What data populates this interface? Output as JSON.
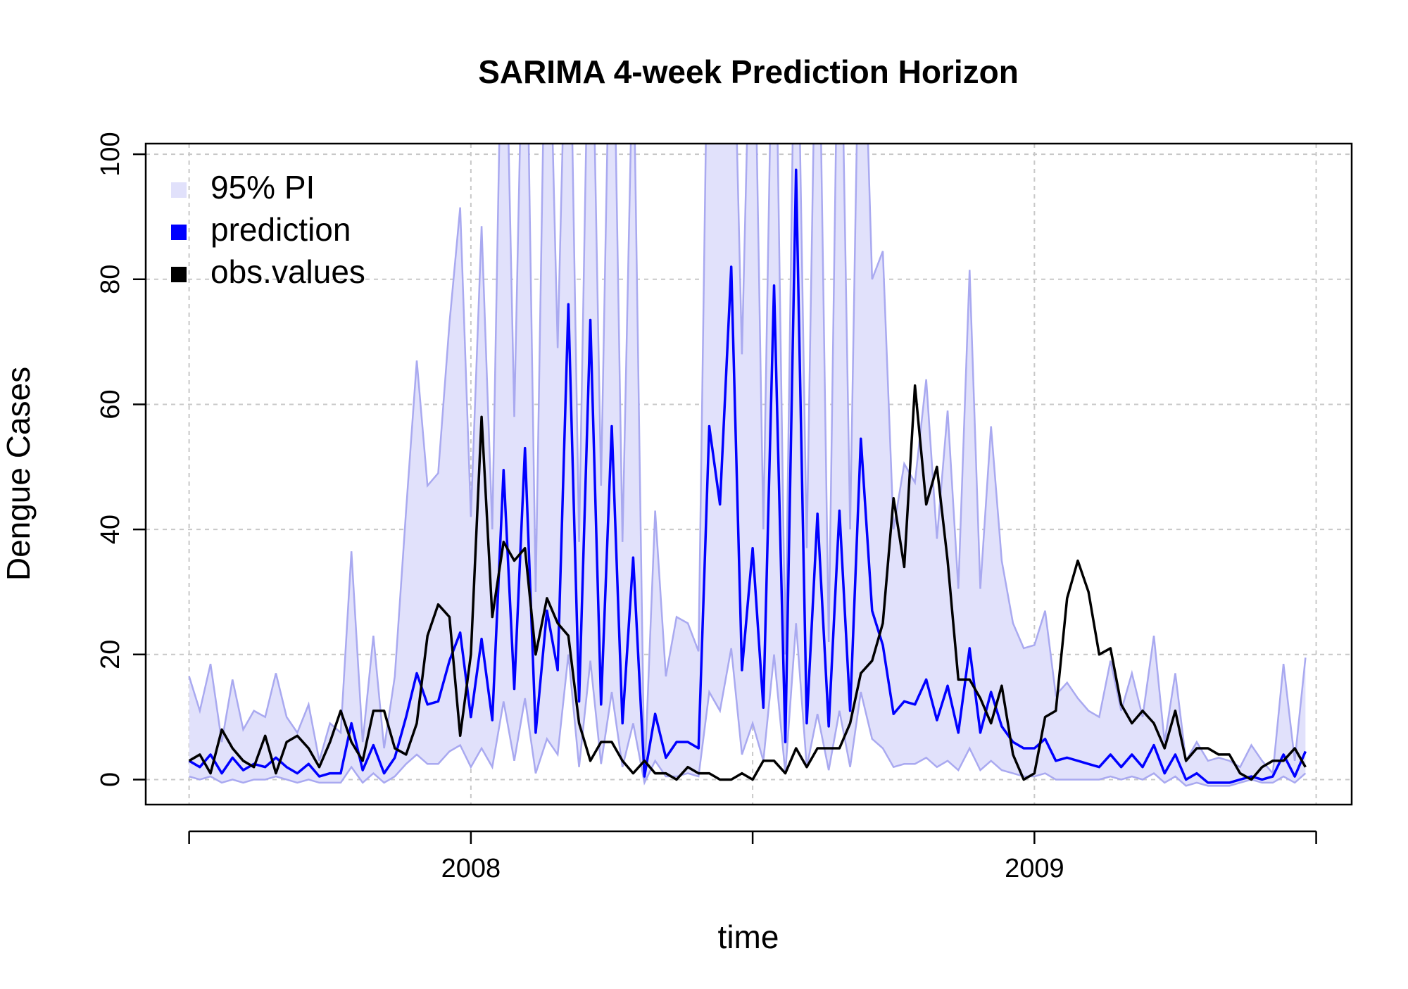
{
  "chart_data": {
    "type": "line",
    "title": "SARIMA 4-week Prediction Horizon",
    "x_label": "time",
    "y_label": "Dengue Cases",
    "xlim": [
      2007.423,
      2009.563
    ],
    "ylim": [
      -4,
      101.7
    ],
    "xticks": [
      {
        "value": 2007.5,
        "label": null
      },
      2008,
      {
        "value": 2008.5,
        "label": null
      },
      2009,
      {
        "value": 2009.5,
        "label": null
      }
    ],
    "yticks": [
      0,
      20,
      40,
      60,
      80,
      100
    ],
    "grid": true,
    "legend": "top-left",
    "x": [
      2007.5,
      2007.519,
      2007.538,
      2007.558,
      2007.577,
      2007.596,
      2007.615,
      2007.635,
      2007.654,
      2007.673,
      2007.692,
      2007.712,
      2007.731,
      2007.75,
      2007.769,
      2007.788,
      2007.808,
      2007.827,
      2007.846,
      2007.865,
      2007.885,
      2007.904,
      2007.923,
      2007.942,
      2007.962,
      2007.981,
      2008,
      2008.019,
      2008.038,
      2008.058,
      2008.077,
      2008.096,
      2008.115,
      2008.135,
      2008.154,
      2008.173,
      2008.192,
      2008.212,
      2008.231,
      2008.25,
      2008.269,
      2008.288,
      2008.308,
      2008.327,
      2008.346,
      2008.365,
      2008.385,
      2008.404,
      2008.423,
      2008.442,
      2008.462,
      2008.481,
      2008.5,
      2008.519,
      2008.538,
      2008.558,
      2008.577,
      2008.596,
      2008.615,
      2008.635,
      2008.654,
      2008.673,
      2008.692,
      2008.712,
      2008.731,
      2008.75,
      2008.769,
      2008.788,
      2008.808,
      2008.827,
      2008.846,
      2008.865,
      2008.885,
      2008.904,
      2008.923,
      2008.942,
      2008.962,
      2008.981,
      2009,
      2009.019,
      2009.038,
      2009.058,
      2009.077,
      2009.096,
      2009.115,
      2009.135,
      2009.154,
      2009.173,
      2009.192,
      2009.212,
      2009.231,
      2009.25,
      2009.269,
      2009.288,
      2009.308,
      2009.327,
      2009.346,
      2009.365,
      2009.385,
      2009.404,
      2009.423,
      2009.442,
      2009.462,
      2009.481
    ],
    "series": [
      {
        "name": "95% PI",
        "kind": "band",
        "color": "#e1e1fb",
        "line_color": "#a9a9f0",
        "upper": [
          16.5,
          11,
          18.5,
          6,
          16,
          8,
          11,
          10,
          17,
          10,
          7.5,
          12,
          3,
          9,
          7.5,
          36.5,
          6,
          23,
          5,
          16.5,
          43,
          67,
          47,
          49,
          73,
          91.5,
          42,
          88.5,
          40,
          140,
          58,
          140,
          30,
          140,
          69,
          140,
          38,
          140,
          47,
          140,
          38,
          120,
          0,
          43,
          16.5,
          26,
          25,
          20.5,
          140,
          140,
          140,
          68,
          140,
          40,
          140,
          20,
          140,
          37,
          140,
          22,
          140,
          40,
          140,
          80,
          84.5,
          40,
          50.5,
          47.5,
          64,
          38.5,
          59,
          30.5,
          81.5,
          30.5,
          56.5,
          35,
          25,
          21,
          21.5,
          27,
          13.5,
          15.5,
          13,
          11,
          10,
          19,
          11,
          17,
          10,
          23,
          6,
          17,
          3,
          6,
          3,
          3.5,
          3,
          2,
          5.5,
          3,
          1,
          18.5,
          3,
          19.5
        ],
        "lower": [
          0.5,
          0,
          0.5,
          -0.5,
          0,
          -0.5,
          0,
          0,
          0.5,
          0,
          -0.5,
          0,
          -0.5,
          -0.5,
          -0.5,
          2,
          -0.5,
          1,
          -0.5,
          0.5,
          2.5,
          4,
          2.5,
          2.5,
          4.5,
          5.5,
          2,
          5,
          2,
          12.5,
          3,
          13,
          1,
          6.5,
          4,
          20,
          2,
          19,
          2.5,
          14,
          2,
          9,
          -0.5,
          3,
          0.5,
          0.5,
          1,
          0.5,
          14,
          11,
          21,
          4,
          9,
          3,
          20,
          1,
          25,
          2,
          10.5,
          1.5,
          11,
          2,
          14,
          6.5,
          5,
          2,
          2.5,
          2.5,
          3.5,
          2,
          3,
          1.5,
          5,
          1.5,
          3,
          1.5,
          1,
          0.5,
          0.5,
          1,
          0,
          0,
          0,
          0,
          0,
          0.5,
          0,
          0.5,
          0,
          1,
          -0.5,
          0.5,
          -1,
          -0.5,
          -1,
          -1,
          -1,
          -0.5,
          0,
          -0.5,
          -0.5,
          0.5,
          -0.5,
          1
        ]
      },
      {
        "name": "prediction",
        "color": "#0000ff",
        "values": [
          3,
          2,
          4,
          1,
          3.5,
          1.5,
          2.5,
          2,
          3.5,
          2,
          1,
          2.5,
          0.5,
          1,
          1,
          9,
          1.5,
          5.5,
          1,
          3.5,
          10,
          17,
          12,
          12.5,
          19,
          23.5,
          10,
          22.5,
          9.5,
          49.5,
          14.5,
          53,
          7.5,
          27,
          17.5,
          76,
          12.5,
          73.5,
          12,
          56.5,
          9,
          35.5,
          0.5,
          10.5,
          3.5,
          6,
          6,
          5,
          56.5,
          44,
          82,
          17.5,
          37,
          11.5,
          79,
          6,
          97.5,
          9,
          42.5,
          8.5,
          43,
          11,
          54.5,
          27,
          21.5,
          10.5,
          12.5,
          12,
          16,
          9.5,
          15,
          7.5,
          21,
          7.5,
          14,
          8.5,
          6,
          5,
          5,
          6.5,
          3,
          3.5,
          3,
          2.5,
          2,
          4,
          2,
          4,
          2,
          5.5,
          1,
          4,
          0,
          1,
          -0.5,
          -0.5,
          -0.5,
          0,
          0.5,
          0,
          0.5,
          4,
          0.5,
          4.5
        ]
      },
      {
        "name": "obs.values",
        "color": "#000000",
        "values": [
          3,
          4,
          1,
          8,
          5,
          3,
          2,
          7,
          1,
          6,
          7,
          5,
          2,
          6,
          11,
          6,
          3,
          11,
          11,
          5,
          4,
          9,
          23,
          28,
          26,
          7,
          20,
          58,
          26,
          38,
          35,
          37,
          20,
          29,
          25,
          23,
          9,
          3,
          6,
          6,
          3,
          1,
          3,
          1,
          1,
          0,
          2,
          1,
          1,
          0,
          0,
          1,
          0,
          3,
          3,
          1,
          5,
          2,
          5,
          5,
          5,
          9,
          17,
          19,
          25,
          45,
          34,
          63,
          44,
          50,
          35,
          16,
          16,
          13,
          9,
          15,
          4,
          0,
          1,
          10,
          11,
          29,
          35,
          30,
          20,
          21,
          12,
          9,
          11,
          9,
          5,
          11,
          3,
          5,
          5,
          4,
          4,
          1,
          0,
          2,
          3,
          3,
          5,
          2
        ]
      }
    ]
  }
}
